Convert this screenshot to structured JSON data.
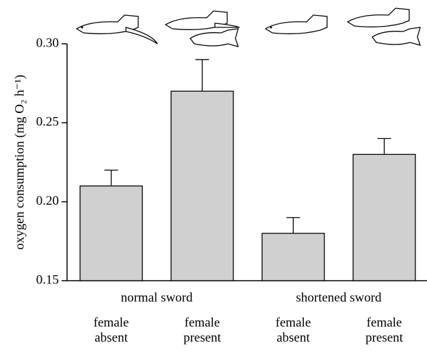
{
  "chart_data": {
    "type": "bar",
    "y_label": "oxygen consumption (mg O₂ h⁻¹)",
    "categories": [
      "female absent",
      "female present",
      "female absent",
      "female present"
    ],
    "groups": [
      "normal sword",
      "shortened sword"
    ],
    "values": [
      0.21,
      0.27,
      0.18,
      0.23
    ],
    "errors": [
      0.01,
      0.02,
      0.01,
      0.01
    ],
    "color": "#d0d0d0",
    "ylim": [
      0.15,
      0.3
    ],
    "yticks": [
      0.15,
      {
        "value": 0.2,
        "label": "0.20"
      },
      0.25,
      {
        "value": 0.3,
        "label": "0.30"
      }
    ]
  }
}
